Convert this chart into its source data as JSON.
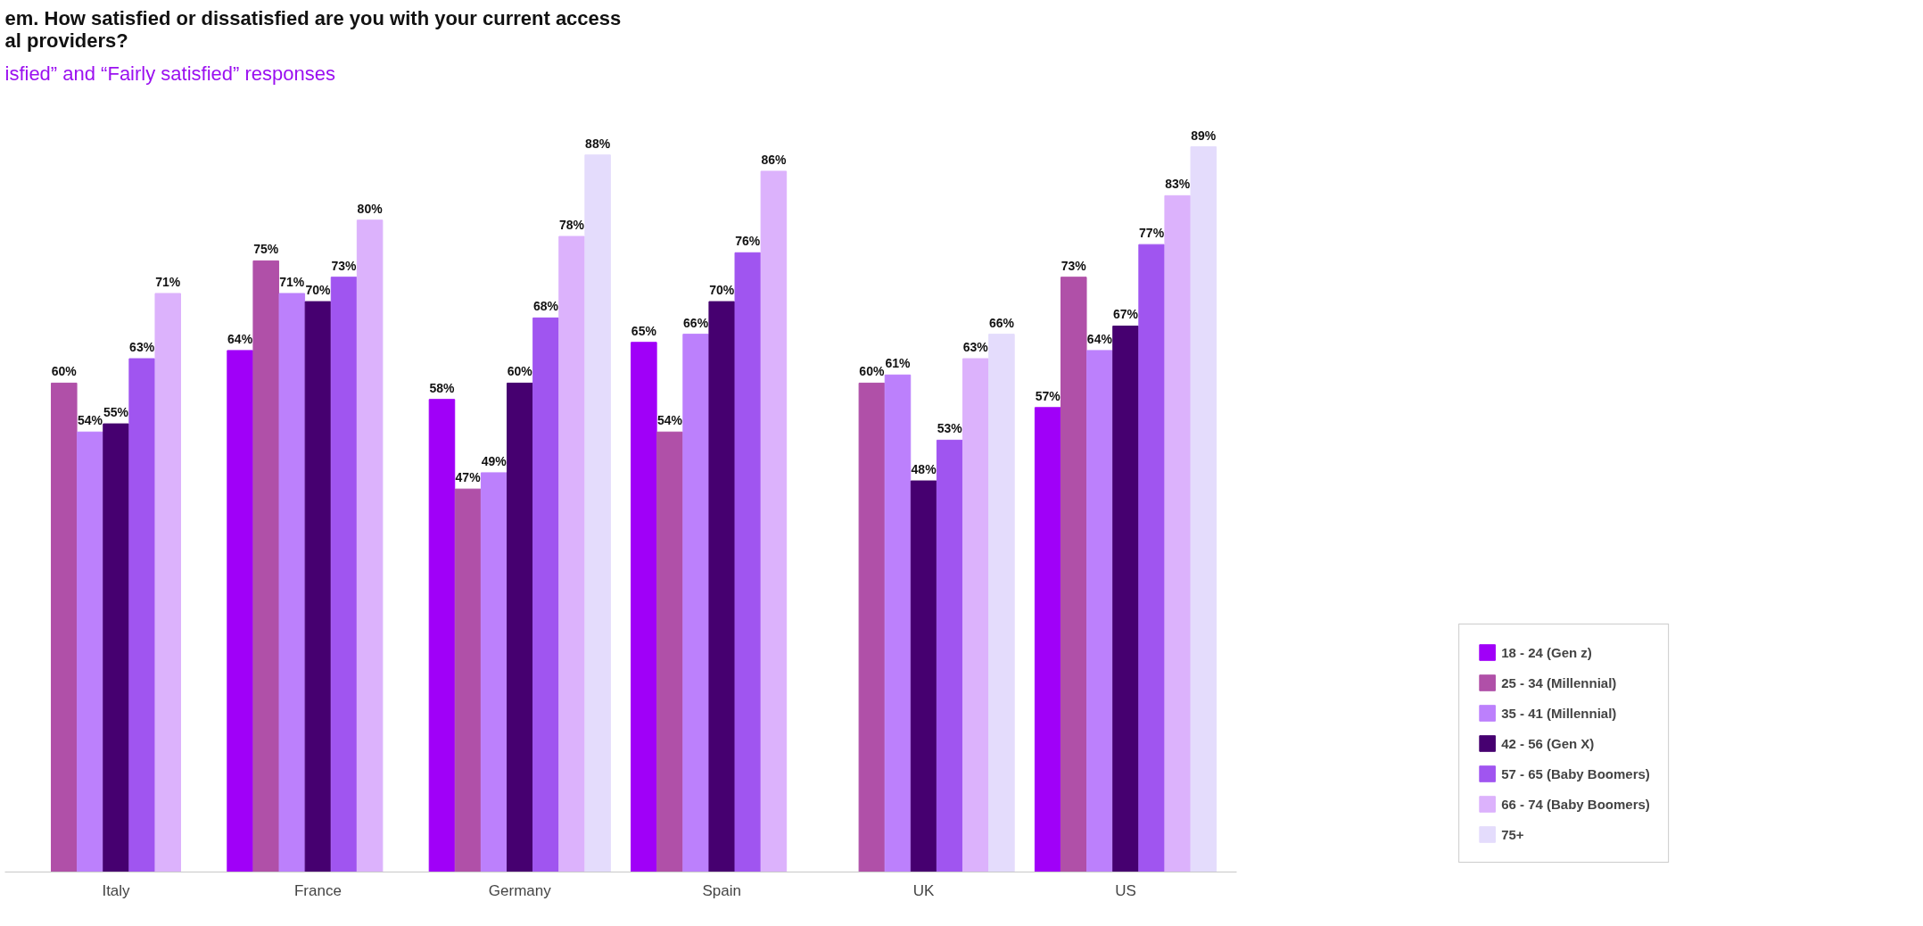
{
  "chart_data": {
    "type": "bar",
    "title": "em.  How satisfied or dissatisfied are you with your current access\nal providers?",
    "subtitle": "isfied” and “Fairly satisfied” responses",
    "categories": [
      "Italy",
      "France",
      "Germany",
      "Spain",
      "UK",
      "US"
    ],
    "tick_labels": "x",
    "legend": "bottom right",
    "series": [
      {
        "name": "18 - 24 (Gen z)",
        "color": "#a000f8",
        "values": [
          null,
          64,
          58,
          65,
          null,
          57
        ],
        "value_labels": [
          null,
          "64%",
          "58%",
          "65%",
          null,
          "57%"
        ]
      },
      {
        "name": "25 - 34 (Millennial)",
        "color": "#b050a8",
        "values": [
          60,
          75,
          47,
          54,
          60,
          73
        ],
        "value_labels": [
          "60%",
          "75%",
          "47%",
          "54%",
          "60%",
          "73%"
        ]
      },
      {
        "name": "35 - 41 (Millennial)",
        "color": "#bc80fc",
        "values": [
          54,
          71,
          49,
          66,
          61,
          64
        ],
        "value_labels": [
          "54%",
          "71%",
          "49%",
          "66%",
          "61%",
          "64%"
        ]
      },
      {
        "name": "42 - 56 (Gen X)",
        "color": "#460070",
        "values": [
          55,
          70,
          60,
          70,
          48,
          67
        ],
        "value_labels": [
          "55%",
          "70%",
          "60%",
          "70%",
          "48%",
          "67%"
        ]
      },
      {
        "name": "57 - 65 (Baby Boomers)",
        "color": "#a055f0",
        "values": [
          63,
          73,
          68,
          76,
          53,
          77
        ],
        "value_labels": [
          "63%",
          "73%",
          "68%",
          "76%",
          "53%",
          "77%"
        ]
      },
      {
        "name": "66 - 74 (Baby Boomers)",
        "color": "#dcb2fc",
        "values": [
          71,
          80,
          78,
          86,
          63,
          83
        ],
        "value_labels": [
          "71%",
          "80%",
          "78%",
          "86%",
          "63%",
          "83%"
        ]
      },
      {
        "name": "75+",
        "color": "#e4dcfc",
        "values": [
          null,
          null,
          88,
          null,
          66,
          89
        ],
        "value_labels": [
          null,
          null,
          "88%",
          null,
          "66%",
          "89%"
        ]
      }
    ]
  }
}
